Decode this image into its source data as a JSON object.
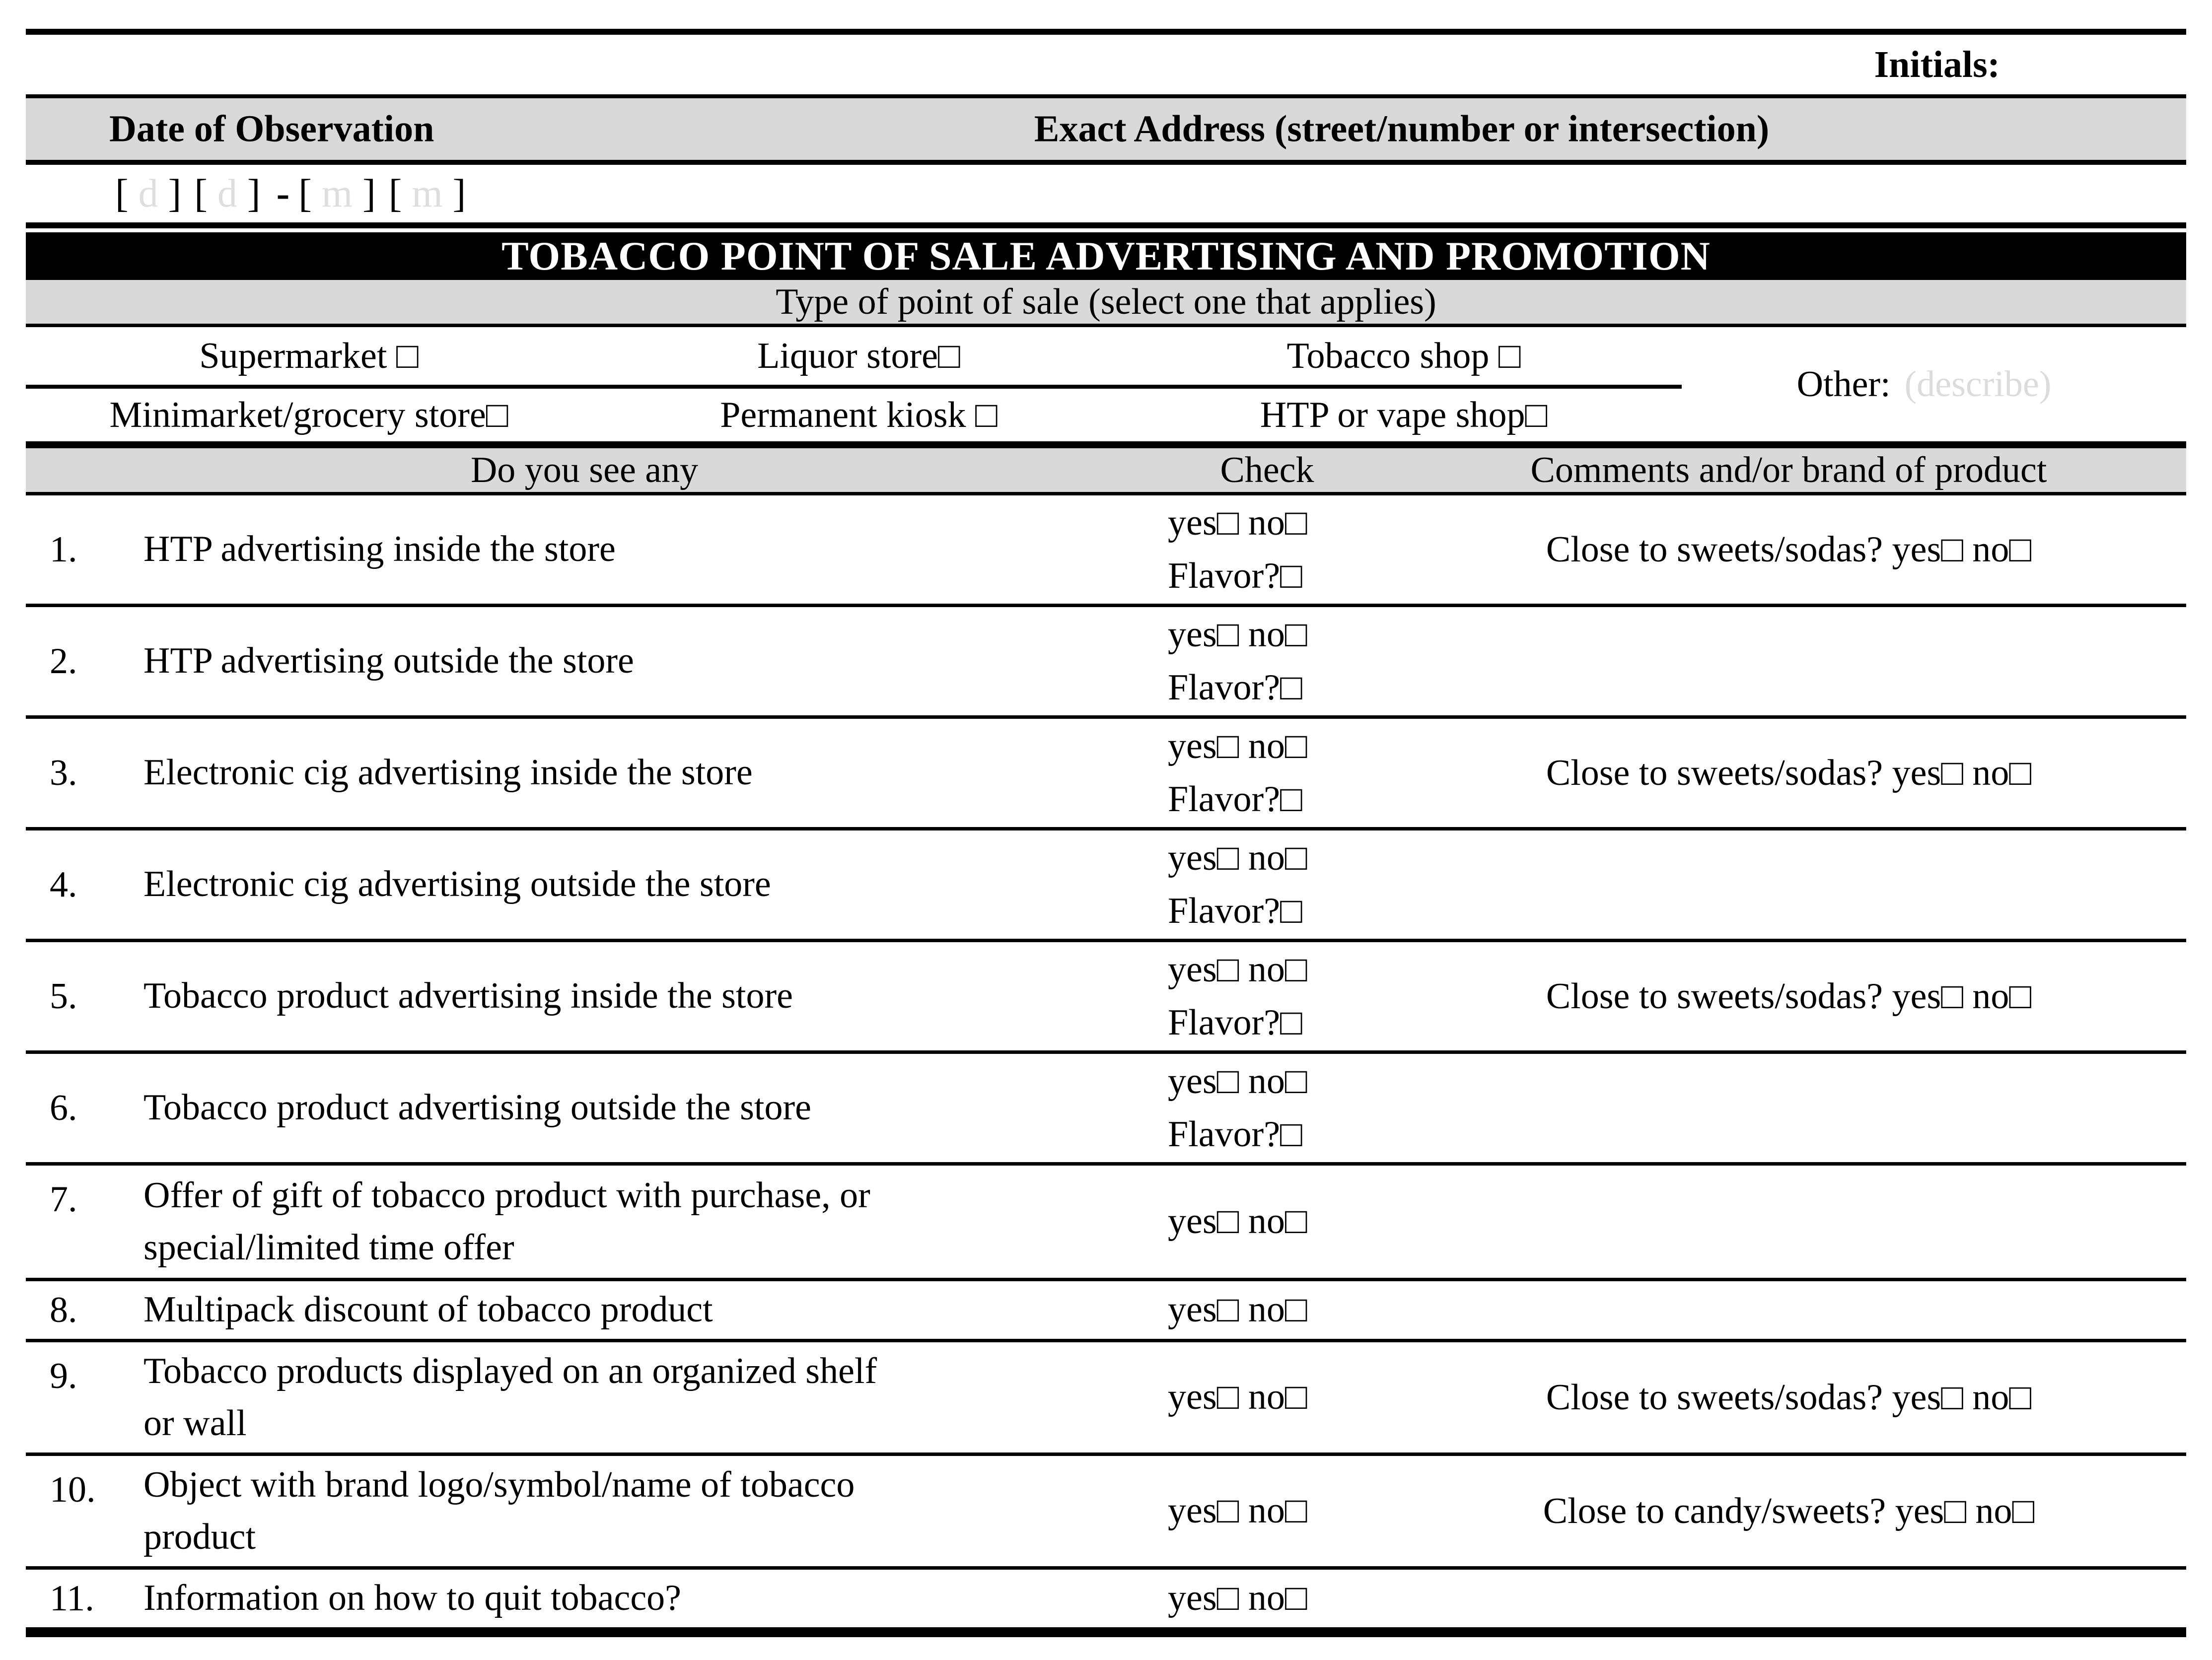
{
  "form": {
    "initials_label": "Initials:",
    "top_header": {
      "date_col": "Date of Observation",
      "address_col": "Exact Address (street/number or intersection)"
    },
    "date_placeholder": {
      "open": "[",
      "close": "]",
      "separator": "-",
      "fields": [
        "d",
        "d",
        "m",
        "m"
      ]
    },
    "banner_title": "TOBACCO POINT OF SALE ADVERTISING AND PROMOTION",
    "pos_type": {
      "heading": "Type of point of sale (select one that applies)",
      "row1": [
        "Supermarket □",
        "Liquor store□",
        "Tobacco shop □"
      ],
      "row2": [
        "Minimarket/grocery store□",
        "Permanent kiosk □",
        "HTP or vape shop□"
      ],
      "other_label": "Other:",
      "other_placeholder": "(describe)"
    },
    "checklist": {
      "headers": [
        "Do you see any",
        "Check",
        "Comments and/or brand of product"
      ],
      "rows": [
        {
          "num": "1.",
          "question": "HTP advertising inside the store",
          "check": [
            "yes□ no□",
            "Flavor?□"
          ],
          "comment": "Close to sweets/sodas? yes□ no□"
        },
        {
          "num": "2.",
          "question": "HTP advertising outside the store",
          "check": [
            "yes□ no□",
            "Flavor?□"
          ],
          "comment": ""
        },
        {
          "num": "3.",
          "question": "Electronic cig advertising inside the store",
          "check": [
            "yes□ no□",
            "Flavor?□"
          ],
          "comment": "Close to sweets/sodas? yes□ no□"
        },
        {
          "num": "4.",
          "question": "Electronic cig advertising outside the store",
          "check": [
            "yes□ no□",
            "Flavor?□"
          ],
          "comment": ""
        },
        {
          "num": "5.",
          "question": "Tobacco product advertising inside the store",
          "check": [
            "yes□ no□",
            "Flavor?□"
          ],
          "comment": "Close to sweets/sodas? yes□ no□"
        },
        {
          "num": "6.",
          "question": "Tobacco product advertising outside the store",
          "check": [
            "yes□ no□",
            "Flavor?□"
          ],
          "comment": ""
        },
        {
          "num": "7.",
          "question": [
            "Offer of gift of tobacco product with purchase, or",
            "special/limited time offer"
          ],
          "check": [
            "yes□ no□"
          ],
          "comment": ""
        },
        {
          "num": "8.",
          "question": "Multipack discount of tobacco product",
          "check": [
            "yes□ no□"
          ],
          "comment": ""
        },
        {
          "num": "9.",
          "question": [
            "Tobacco products displayed on an organized shelf",
            "or wall"
          ],
          "check": [
            "yes□ no□"
          ],
          "comment": "Close to sweets/sodas? yes□ no□"
        },
        {
          "num": "10.",
          "question": [
            "Object with brand logo/symbol/name of tobacco",
            "product"
          ],
          "check": [
            "yes□ no□"
          ],
          "comment": "Close to candy/sweets? yes□ no□"
        },
        {
          "num": "11.",
          "question": "Information on how to quit tobacco?",
          "check": [
            "yes□ no□"
          ],
          "comment": ""
        }
      ]
    },
    "colors": {
      "shade": "#d9d9d9",
      "placeholder_text": "#dcdcdc",
      "ink": "#000000"
    }
  }
}
